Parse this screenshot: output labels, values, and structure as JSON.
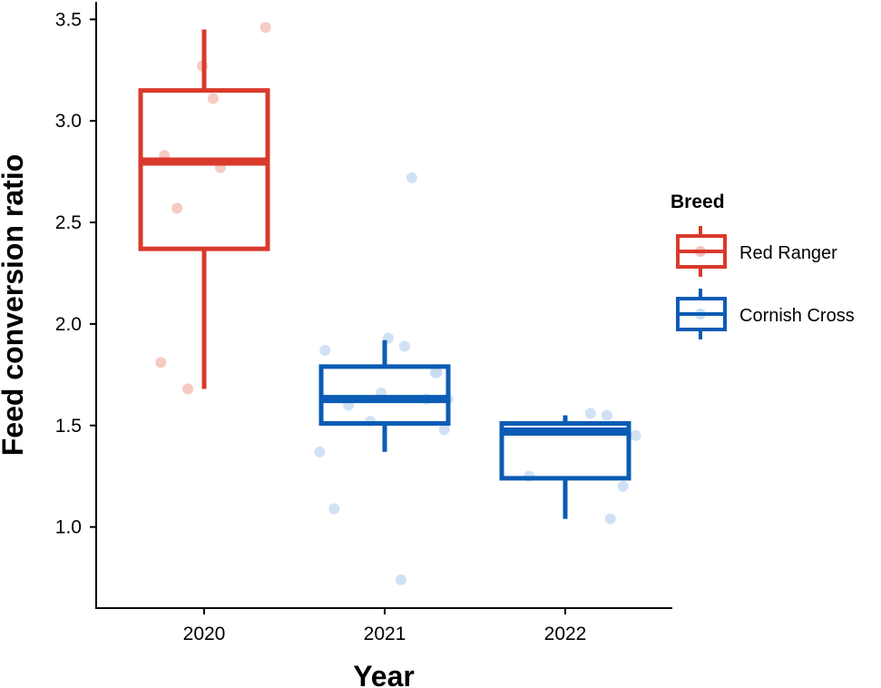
{
  "chart_data": {
    "type": "box",
    "xlabel": "Year",
    "ylabel": "Feed conversion ratio",
    "categories": [
      "2020",
      "2021",
      "2022"
    ],
    "ylim": [
      0.65,
      3.6
    ],
    "yticks": [
      1.0,
      1.5,
      2.0,
      2.5,
      3.0,
      3.5
    ],
    "ytick_labels": [
      "1.0",
      "1.5",
      "2.0",
      "2.5",
      "3.0",
      "3.5"
    ],
    "grid": false,
    "legend": {
      "title": "Breed",
      "position": "right",
      "entries": [
        "Red Ranger",
        "Cornish Cross"
      ]
    },
    "series": [
      {
        "name": "Red Ranger",
        "color": "#d93a2b",
        "point_color": "#f5bdb5",
        "boxes": [
          {
            "category": "2020",
            "min": 1.68,
            "q1": 2.37,
            "median": 2.8,
            "q3": 3.15,
            "max": 3.45
          }
        ],
        "points": [
          {
            "category": "2020",
            "y": 3.46,
            "jitter": 0.34
          },
          {
            "category": "2020",
            "y": 3.27,
            "jitter": -0.01
          },
          {
            "category": "2020",
            "y": 3.11,
            "jitter": 0.05
          },
          {
            "category": "2020",
            "y": 2.83,
            "jitter": -0.22
          },
          {
            "category": "2020",
            "y": 2.77,
            "jitter": 0.09
          },
          {
            "category": "2020",
            "y": 2.57,
            "jitter": -0.15
          },
          {
            "category": "2020",
            "y": 1.81,
            "jitter": -0.24
          },
          {
            "category": "2020",
            "y": 1.68,
            "jitter": -0.09
          }
        ]
      },
      {
        "name": "Cornish Cross",
        "color": "#0b5cb5",
        "point_color": "#c6daf2",
        "boxes": [
          {
            "category": "2021",
            "min": 1.37,
            "q1": 1.51,
            "median": 1.63,
            "q3": 1.79,
            "max": 1.92
          },
          {
            "category": "2022",
            "min": 1.04,
            "q1": 1.24,
            "median": 1.47,
            "q3": 1.51,
            "max": 1.55
          }
        ],
        "points": [
          {
            "category": "2021",
            "y": 2.72,
            "jitter": 0.15
          },
          {
            "category": "2021",
            "y": 1.93,
            "jitter": 0.02
          },
          {
            "category": "2021",
            "y": 1.89,
            "jitter": 0.11
          },
          {
            "category": "2021",
            "y": 1.87,
            "jitter": -0.33
          },
          {
            "category": "2021",
            "y": 1.76,
            "jitter": 0.28
          },
          {
            "category": "2021",
            "y": 1.76,
            "jitter": 0.29
          },
          {
            "category": "2021",
            "y": 1.66,
            "jitter": -0.02
          },
          {
            "category": "2021",
            "y": 1.63,
            "jitter": 0.35
          },
          {
            "category": "2021",
            "y": 1.63,
            "jitter": 0.23
          },
          {
            "category": "2021",
            "y": 1.6,
            "jitter": -0.2
          },
          {
            "category": "2021",
            "y": 1.52,
            "jitter": -0.08
          },
          {
            "category": "2021",
            "y": 1.48,
            "jitter": 0.33
          },
          {
            "category": "2021",
            "y": 1.37,
            "jitter": -0.36
          },
          {
            "category": "2021",
            "y": 1.09,
            "jitter": -0.28
          },
          {
            "category": "2021",
            "y": 0.74,
            "jitter": 0.09
          },
          {
            "category": "2022",
            "y": 1.56,
            "jitter": 0.14
          },
          {
            "category": "2022",
            "y": 1.55,
            "jitter": 0.23
          },
          {
            "category": "2022",
            "y": 1.45,
            "jitter": 0.39
          },
          {
            "category": "2022",
            "y": 1.25,
            "jitter": -0.2
          },
          {
            "category": "2022",
            "y": 1.2,
            "jitter": 0.32
          },
          {
            "category": "2022",
            "y": 1.04,
            "jitter": 0.25
          }
        ]
      }
    ]
  }
}
